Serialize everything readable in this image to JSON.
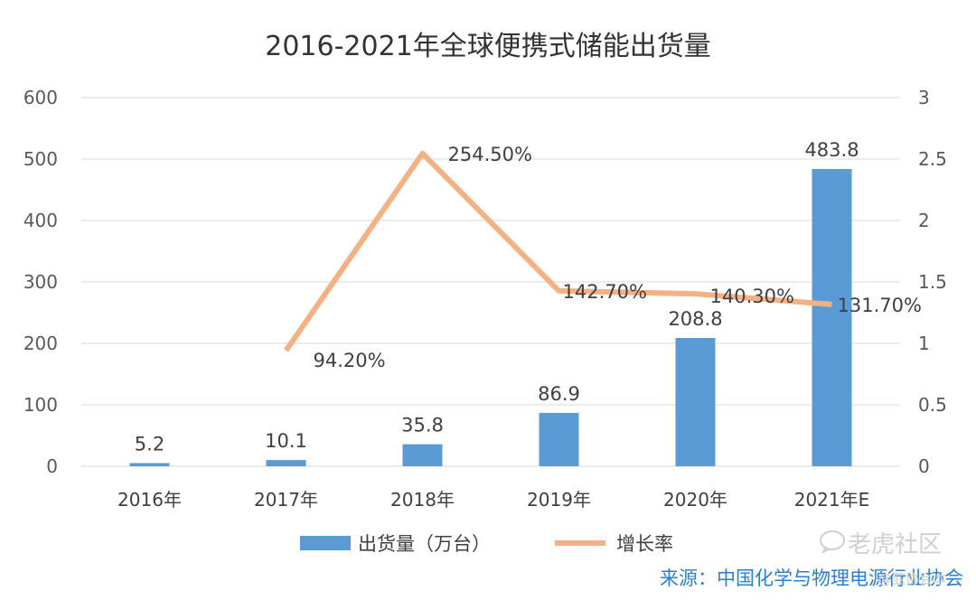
{
  "chart_data": {
    "type": "bar",
    "title": "2016-2021年全球便携式储能出货量",
    "categories": [
      "2016年",
      "2017年",
      "2018年",
      "2019年",
      "2020年",
      "2021年E"
    ],
    "series": [
      {
        "name": "出货量（万台）",
        "type": "bar",
        "axis": "left",
        "color": "#5b9bd5",
        "values": [
          5.2,
          10.1,
          35.8,
          86.9,
          208.8,
          483.8
        ],
        "labels": [
          "5.2",
          "10.1",
          "35.8",
          "86.9",
          "208.8",
          "483.8"
        ]
      },
      {
        "name": "增长率",
        "type": "line",
        "axis": "right",
        "color": "#f4b183",
        "values": [
          null,
          0.942,
          2.545,
          1.427,
          1.403,
          1.317
        ],
        "labels": [
          "",
          "94.20%",
          "254.50%",
          "142.70%",
          "140.30%",
          "131.70%"
        ]
      }
    ],
    "y_left": {
      "min": 0,
      "max": 600,
      "ticks": [
        "0",
        "100",
        "200",
        "300",
        "400",
        "500",
        "600"
      ]
    },
    "y_right": {
      "min": 0,
      "max": 3,
      "ticks": [
        "0",
        "0.5",
        "1",
        "1.5",
        "2",
        "2.5",
        "3"
      ]
    },
    "grid": true,
    "legend": "bottom"
  },
  "source_text": "来源：中国化学与物理电源行业协会",
  "watermark_text": "老虎社区",
  "watermark_small": "@亚协会本"
}
